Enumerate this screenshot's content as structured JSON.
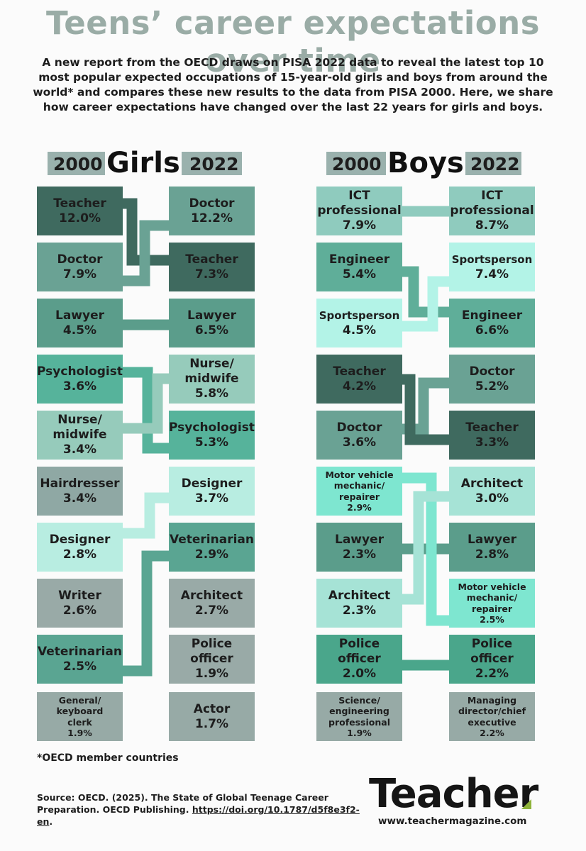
{
  "title": "Teens’ career expectations over time",
  "intro": "A new report from the OECD draws on PISA 2022 data to reveal the latest top 10 most popular expected occupations of 15-year-old girls and boys from around the world* and compares these new results to the data from PISA 2000. Here, we share how career expectations have changed over the last 22 years for girls and boys.",
  "girls": {
    "year_left": "2000",
    "heading": "Girls",
    "year_right": "2022",
    "col2000": [
      {
        "label": "Teacher",
        "value": "12.0%",
        "color": "#3f6a5f"
      },
      {
        "label": "Doctor",
        "value": "7.9%",
        "color": "#6aa294"
      },
      {
        "label": "Lawyer",
        "value": "4.5%",
        "color": "#5b9d8b"
      },
      {
        "label": "Psychologist",
        "value": "3.6%",
        "color": "#56b39b"
      },
      {
        "label": "Nurse/ midwife",
        "value": "3.4%",
        "color": "#96cbbb"
      },
      {
        "label": "Hairdresser",
        "value": "3.4%",
        "color": "#8fa8a4"
      },
      {
        "label": "Designer",
        "value": "2.8%",
        "color": "#b8ede1"
      },
      {
        "label": "Writer",
        "value": "2.6%",
        "color": "#99aaa7"
      },
      {
        "label": "Veterinarian",
        "value": "2.5%",
        "color": "#5aa592"
      },
      {
        "label": "General/ keyboard clerk",
        "value": "1.9%",
        "color": "#97aaa6"
      }
    ],
    "col2022": [
      {
        "label": "Doctor",
        "value": "12.2%",
        "color": "#6aa294"
      },
      {
        "label": "Teacher",
        "value": "7.3%",
        "color": "#3f6a5f"
      },
      {
        "label": "Lawyer",
        "value": "6.5%",
        "color": "#5b9d8b"
      },
      {
        "label": "Nurse/ midwife",
        "value": "5.8%",
        "color": "#96cbbb"
      },
      {
        "label": "Psychologist",
        "value": "5.3%",
        "color": "#56b39b"
      },
      {
        "label": "Designer",
        "value": "3.7%",
        "color": "#b8ede1"
      },
      {
        "label": "Veterinarian",
        "value": "2.9%",
        "color": "#5aa592"
      },
      {
        "label": "Architect",
        "value": "2.7%",
        "color": "#99aaa7"
      },
      {
        "label": "Police officer",
        "value": "1.9%",
        "color": "#99aaa7"
      },
      {
        "label": "Actor",
        "value": "1.7%",
        "color": "#97aaa6"
      }
    ]
  },
  "boys": {
    "year_left": "2000",
    "heading": "Boys",
    "year_right": "2022",
    "col2000": [
      {
        "label": "ICT professional",
        "value": "7.9%",
        "color": "#8fcbbe"
      },
      {
        "label": "Engineer",
        "value": "5.4%",
        "color": "#5fae99"
      },
      {
        "label": "Sportsperson",
        "value": "4.5%",
        "color": "#b3f3e7"
      },
      {
        "label": "Teacher",
        "value": "4.2%",
        "color": "#3f6a5f"
      },
      {
        "label": "Doctor",
        "value": "3.6%",
        "color": "#6aa294"
      },
      {
        "label": "Motor vehicle mechanic/ repairer",
        "value": "2.9%",
        "color": "#7ee6d0",
        "small": true
      },
      {
        "label": "Lawyer",
        "value": "2.3%",
        "color": "#5b9d8b"
      },
      {
        "label": "Architect",
        "value": "2.3%",
        "color": "#a6e3d6"
      },
      {
        "label": "Police officer",
        "value": "2.0%",
        "color": "#4aa68b"
      },
      {
        "label": "Science/ engineering professional",
        "value": "1.9%",
        "color": "#97aaa6",
        "small": true
      }
    ],
    "col2022": [
      {
        "label": "ICT professional",
        "value": "8.7%",
        "color": "#8fcbbe"
      },
      {
        "label": "Sportsperson",
        "value": "7.4%",
        "color": "#b3f3e7"
      },
      {
        "label": "Engineer",
        "value": "6.6%",
        "color": "#5fae99"
      },
      {
        "label": "Doctor",
        "value": "5.2%",
        "color": "#6aa294"
      },
      {
        "label": "Teacher",
        "value": "3.3%",
        "color": "#3f6a5f"
      },
      {
        "label": "Architect",
        "value": "3.0%",
        "color": "#a6e3d6"
      },
      {
        "label": "Lawyer",
        "value": "2.8%",
        "color": "#5b9d8b"
      },
      {
        "label": "Motor vehicle mechanic/ repairer",
        "value": "2.5%",
        "color": "#7ee6d0",
        "small": true
      },
      {
        "label": "Police officer",
        "value": "2.2%",
        "color": "#4aa68b"
      },
      {
        "label": "Managing director/chief executive",
        "value": "2.2%",
        "color": "#97aaa6",
        "small": true
      }
    ]
  },
  "footnote": "*OECD member countries",
  "source_text": "Source: OECD. (2025). The State of Global Teenage Career Preparation. OECD Publishing.",
  "source_link": "https://doi.org/10.1787/d5f8e3f2-en",
  "source_end": ".",
  "logo": "Teacher",
  "logo_mark": "green-triangle-mark",
  "url": "www.teachermagazine.com"
}
